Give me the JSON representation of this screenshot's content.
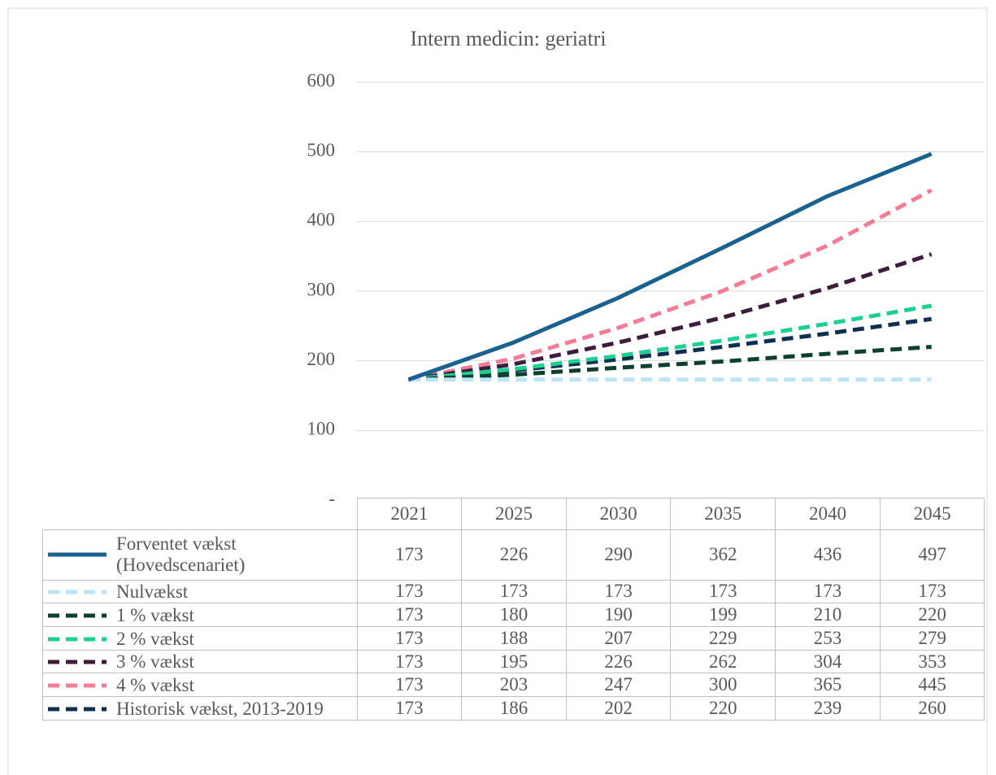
{
  "chart_data": {
    "type": "line",
    "title": "Intern medicin: geriatri",
    "categories": [
      "2021",
      "2025",
      "2030",
      "2035",
      "2040",
      "2045"
    ],
    "ylim": [
      0,
      600
    ],
    "yticks": [
      {
        "value": 0,
        "label": "-"
      },
      100,
      200,
      300,
      400,
      500,
      600
    ],
    "grid": true,
    "series": [
      {
        "name": "Forventet vækst (Hovedscenariet)",
        "color": "#1a6190",
        "dashed": false,
        "values": [
          173,
          226,
          290,
          362,
          436,
          497
        ]
      },
      {
        "name": "Nulvækst",
        "color": "#bde3f7",
        "dashed": true,
        "values": [
          173,
          173,
          173,
          173,
          173,
          173
        ]
      },
      {
        "name": "1 % vækst",
        "color": "#0f3f30",
        "dashed": true,
        "values": [
          173,
          180,
          190,
          199,
          210,
          220
        ]
      },
      {
        "name": "2 % vækst",
        "color": "#1ecf92",
        "dashed": true,
        "values": [
          173,
          188,
          207,
          229,
          253,
          279
        ]
      },
      {
        "name": "3 % vækst",
        "color": "#3d1c3c",
        "dashed": true,
        "values": [
          173,
          195,
          226,
          262,
          304,
          353
        ]
      },
      {
        "name": "4 % vækst",
        "color": "#f47c96",
        "dashed": true,
        "values": [
          173,
          203,
          247,
          300,
          365,
          445
        ]
      },
      {
        "name": "Historisk vækst, 2013-2019",
        "color": "#0f2f50",
        "dashed": true,
        "values": [
          173,
          186,
          202,
          220,
          239,
          260
        ]
      }
    ]
  }
}
